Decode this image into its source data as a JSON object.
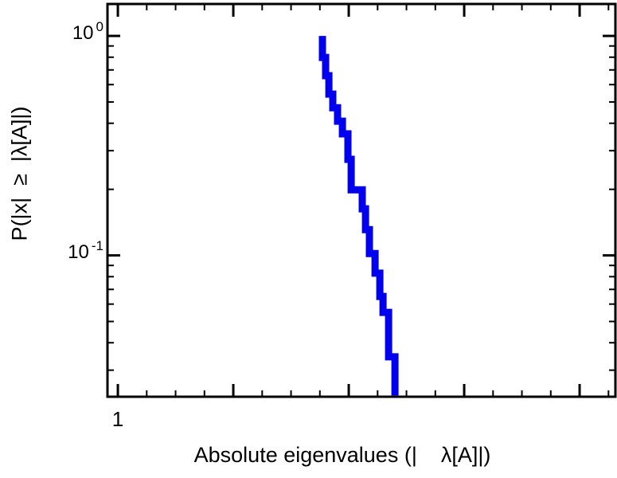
{
  "chart_data": {
    "type": "line",
    "subtype": "step-ccdf",
    "title": "",
    "xlabel": "Absolute eigenvalues (|    λ[A]|)",
    "ylabel": "P(|x|  ≥  |λ[A]|)",
    "x_scale": "linear",
    "y_scale": "log",
    "xlim": [
      0.91,
      5.31
    ],
    "ylim": [
      0.0227,
      1.398
    ],
    "grid": "off",
    "legend": "none",
    "background_color": "#ffffff",
    "axis_color": "#000000",
    "line_color": "#0000ee",
    "line_width": 9,
    "x_ticks_major": [
      1,
      2,
      3,
      4,
      5
    ],
    "x_ticks_minor": [
      1.25,
      1.5,
      1.75,
      2.25,
      2.5,
      2.75,
      3.25,
      3.5,
      3.75,
      4.25,
      4.5,
      4.75,
      5.25
    ],
    "x_tick_labels": [
      {
        "value": 1,
        "label": "1"
      }
    ],
    "y_ticks_major": [
      {
        "value": 1,
        "base": "10",
        "exp": "0"
      },
      {
        "value": 0.1,
        "base": "10",
        "exp": "-1"
      }
    ],
    "y_ticks_minor": [
      0.9,
      0.8,
      0.7,
      0.6,
      0.5,
      0.4,
      0.3,
      0.2,
      0.09,
      0.08,
      0.07,
      0.06,
      0.05,
      0.04,
      0.03
    ],
    "points": [
      [
        2.772,
        1.0
      ],
      [
        2.772,
        0.798
      ],
      [
        2.8,
        0.798
      ],
      [
        2.8,
        0.659
      ],
      [
        2.828,
        0.659
      ],
      [
        2.828,
        0.543
      ],
      [
        2.862,
        0.543
      ],
      [
        2.862,
        0.471
      ],
      [
        2.903,
        0.471
      ],
      [
        2.903,
        0.409
      ],
      [
        2.945,
        0.409
      ],
      [
        2.945,
        0.358
      ],
      [
        2.993,
        0.358
      ],
      [
        2.993,
        0.274
      ],
      [
        3.021,
        0.274
      ],
      [
        3.021,
        0.199
      ],
      [
        3.117,
        0.199
      ],
      [
        3.117,
        0.163
      ],
      [
        3.145,
        0.163
      ],
      [
        3.145,
        0.131
      ],
      [
        3.179,
        0.131
      ],
      [
        3.179,
        0.102
      ],
      [
        3.228,
        0.102
      ],
      [
        3.228,
        0.083
      ],
      [
        3.269,
        0.083
      ],
      [
        3.269,
        0.065
      ],
      [
        3.297,
        0.065
      ],
      [
        3.297,
        0.055
      ],
      [
        3.345,
        0.055
      ],
      [
        3.345,
        0.0345
      ],
      [
        3.4,
        0.0345
      ],
      [
        3.4,
        0.023
      ]
    ]
  }
}
